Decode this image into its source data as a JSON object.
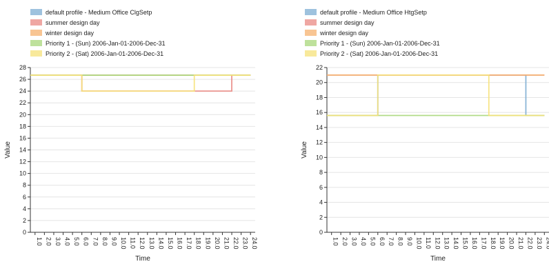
{
  "chart_data": [
    {
      "type": "line",
      "xlabel": "Time",
      "ylabel": "Value",
      "ylim": [
        0,
        28
      ],
      "yticks": [
        0,
        2,
        4,
        6,
        8,
        10,
        12,
        14,
        16,
        18,
        20,
        22,
        24,
        26,
        28
      ],
      "xlim": [
        0.5,
        24.5
      ],
      "xticks": [
        "1.0",
        "2.0",
        "3.0",
        "4.0",
        "5.0",
        "6.0",
        "7.0",
        "8.0",
        "9.0",
        "10.0",
        "11.0",
        "12.0",
        "13.0",
        "14.0",
        "15.0",
        "16.0",
        "17.0",
        "18.0",
        "19.0",
        "20.0",
        "21.0",
        "22.0",
        "23.0",
        "24.0"
      ],
      "grid": "horizontal",
      "legend_position": "top-left",
      "series": [
        {
          "name": "default profile - Medium Office ClgSetp",
          "color": "#7eaed3",
          "x": [
            0,
            24
          ],
          "y": [
            26.7,
            26.7
          ]
        },
        {
          "name": "summer design day",
          "color": "#e98a84",
          "x": [
            0,
            6,
            6,
            22,
            22,
            24
          ],
          "y": [
            26.7,
            26.7,
            24,
            24,
            26.7,
            26.7
          ]
        },
        {
          "name": "winter design day",
          "color": "#f5b26f",
          "x": [
            0,
            24
          ],
          "y": [
            26.7,
            26.7
          ]
        },
        {
          "name": "Priority 1 - (Sun) 2006-Jan-01-2006-Dec-31",
          "color": "#a8d77b",
          "x": [
            0,
            24
          ],
          "y": [
            26.7,
            26.7
          ]
        },
        {
          "name": "Priority 2 - (Sat) 2006-Jan-01-2006-Dec-31",
          "color": "#f6e27a",
          "x": [
            0,
            6,
            6,
            18,
            18,
            24
          ],
          "y": [
            26.7,
            26.7,
            24,
            24,
            26.7,
            26.7
          ]
        }
      ]
    },
    {
      "type": "line",
      "xlabel": "Time",
      "ylabel": "Value",
      "ylim": [
        0,
        22
      ],
      "yticks": [
        0,
        2,
        4,
        6,
        8,
        10,
        12,
        14,
        16,
        18,
        20,
        22
      ],
      "xlim": [
        0.5,
        24.5
      ],
      "xticks": [
        "1.0",
        "2.0",
        "3.0",
        "4.0",
        "5.0",
        "6.0",
        "7.0",
        "8.0",
        "9.0",
        "10.0",
        "11.0",
        "12.0",
        "13.0",
        "14.0",
        "15.0",
        "16.0",
        "17.0",
        "18.0",
        "19.0",
        "20.0",
        "21.0",
        "22.0",
        "23.0",
        "24.0"
      ],
      "grid": "horizontal",
      "legend_position": "top-left",
      "series": [
        {
          "name": "default profile - Medium Office HtgSetp",
          "color": "#7eaed3",
          "x": [
            0,
            6,
            6,
            22,
            22,
            24
          ],
          "y": [
            15.6,
            15.6,
            21,
            21,
            15.6,
            15.6
          ]
        },
        {
          "name": "summer design day",
          "color": "#e98a84",
          "x": [
            0,
            24
          ],
          "y": [
            21,
            21
          ]
        },
        {
          "name": "winter design day",
          "color": "#f5b26f",
          "x": [
            0,
            24
          ],
          "y": [
            21,
            21
          ]
        },
        {
          "name": "Priority 1 - (Sun) 2006-Jan-01-2006-Dec-31",
          "color": "#a8d77b",
          "x": [
            0,
            24
          ],
          "y": [
            15.6,
            15.6
          ]
        },
        {
          "name": "Priority 2 - (Sat) 2006-Jan-01-2006-Dec-31",
          "color": "#f6e27a",
          "x": [
            0,
            6,
            6,
            18,
            18,
            24
          ],
          "y": [
            15.6,
            15.6,
            21,
            21,
            15.6,
            15.6
          ]
        }
      ]
    }
  ]
}
